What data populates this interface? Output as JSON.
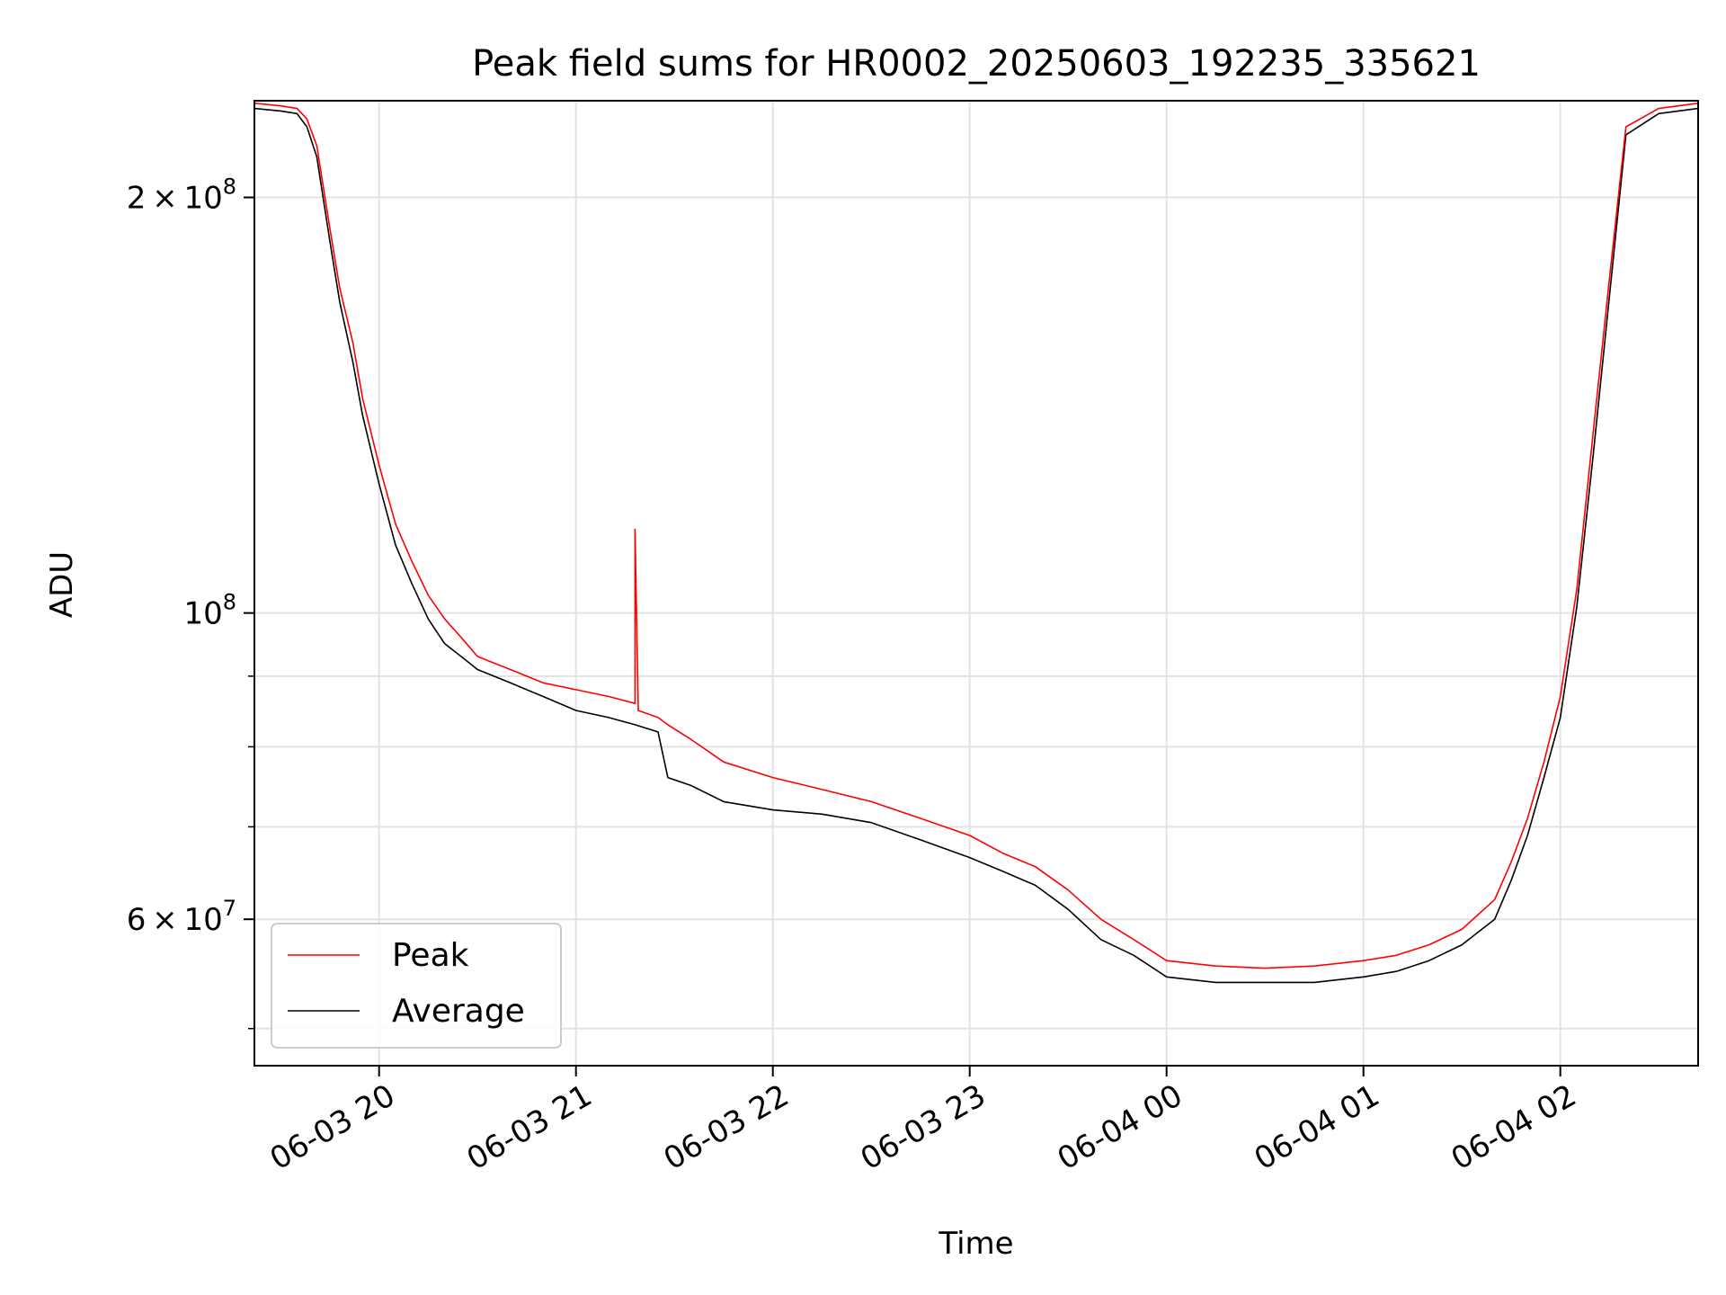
{
  "chart_data": {
    "type": "line",
    "title": "Peak field sums for HR0002_20250603_192235_335621",
    "xlabel": "Time",
    "ylabel": "ADU",
    "y_scale": "log",
    "grid": true,
    "legend_position": "lower-left",
    "xlim": [
      "2025-06-03 19:22",
      "2025-06-04 02:42"
    ],
    "ylim": [
      47000000,
      235000000
    ],
    "x_ticks": [
      {
        "value": "2025-06-03 20:00",
        "label": "06-03 20"
      },
      {
        "value": "2025-06-03 21:00",
        "label": "06-03 21"
      },
      {
        "value": "2025-06-03 22:00",
        "label": "06-03 22"
      },
      {
        "value": "2025-06-03 23:00",
        "label": "06-03 23"
      },
      {
        "value": "2025-06-04 00:00",
        "label": "06-04 00"
      },
      {
        "value": "2025-06-04 01:00",
        "label": "06-04 01"
      },
      {
        "value": "2025-06-04 02:00",
        "label": "06-04 02"
      }
    ],
    "y_ticks_major": [
      {
        "value": 200000000,
        "mantissa": "2",
        "exponent": "8"
      },
      {
        "value": 100000000,
        "mantissa": "",
        "exponent": "8"
      },
      {
        "value": 60000000,
        "mantissa": "6",
        "exponent": "7"
      }
    ],
    "y_ticks_minor": [
      50000000,
      70000000,
      80000000,
      90000000
    ],
    "series": [
      {
        "name": "Peak",
        "color": "#ff0000",
        "x": [
          "2025-06-03 19:22",
          "2025-06-03 19:30",
          "2025-06-03 19:35",
          "2025-06-03 19:38",
          "2025-06-03 19:41",
          "2025-06-03 19:45",
          "2025-06-03 19:48",
          "2025-06-03 19:52",
          "2025-06-03 19:55",
          "2025-06-03 20:00",
          "2025-06-03 20:05",
          "2025-06-03 20:10",
          "2025-06-03 20:15",
          "2025-06-03 20:20",
          "2025-06-03 20:25",
          "2025-06-03 20:30",
          "2025-06-03 20:40",
          "2025-06-03 20:50",
          "2025-06-03 21:00",
          "2025-06-03 21:10",
          "2025-06-03 21:18",
          "2025-06-03 21:18",
          "2025-06-03 21:19",
          "2025-06-03 21:25",
          "2025-06-03 21:28",
          "2025-06-03 21:35",
          "2025-06-03 21:45",
          "2025-06-03 22:00",
          "2025-06-03 22:15",
          "2025-06-03 22:30",
          "2025-06-03 22:45",
          "2025-06-03 23:00",
          "2025-06-03 23:10",
          "2025-06-03 23:20",
          "2025-06-03 23:30",
          "2025-06-03 23:40",
          "2025-06-03 23:50",
          "2025-06-04 00:00",
          "2025-06-04 00:15",
          "2025-06-04 00:30",
          "2025-06-04 00:45",
          "2025-06-04 01:00",
          "2025-06-04 01:10",
          "2025-06-04 01:20",
          "2025-06-04 01:30",
          "2025-06-04 01:40",
          "2025-06-04 01:45",
          "2025-06-04 01:50",
          "2025-06-04 01:55",
          "2025-06-04 02:00",
          "2025-06-04 02:05",
          "2025-06-04 02:10",
          "2025-06-04 02:15",
          "2025-06-04 02:20",
          "2025-06-04 02:30",
          "2025-06-04 02:42"
        ],
        "values": [
          234000000,
          233000000,
          232000000,
          228000000,
          218000000,
          190000000,
          172000000,
          157000000,
          143000000,
          128000000,
          116000000,
          109000000,
          103000000,
          99000000,
          96000000,
          93000000,
          91000000,
          89000000,
          88000000,
          87000000,
          86000000,
          115000000,
          85000000,
          84000000,
          83000000,
          81000000,
          78000000,
          76000000,
          74500000,
          73000000,
          71000000,
          69000000,
          67000000,
          65500000,
          63000000,
          60000000,
          58000000,
          56000000,
          55500000,
          55300000,
          55500000,
          56000000,
          56500000,
          57500000,
          59000000,
          62000000,
          66000000,
          71000000,
          78000000,
          87000000,
          104000000,
          135000000,
          175000000,
          225000000,
          232000000,
          234000000
        ]
      },
      {
        "name": "Average",
        "color": "#000000",
        "x": [
          "2025-06-03 19:22",
          "2025-06-03 19:30",
          "2025-06-03 19:35",
          "2025-06-03 19:38",
          "2025-06-03 19:41",
          "2025-06-03 19:45",
          "2025-06-03 19:48",
          "2025-06-03 19:52",
          "2025-06-03 19:55",
          "2025-06-03 20:00",
          "2025-06-03 20:05",
          "2025-06-03 20:10",
          "2025-06-03 20:15",
          "2025-06-03 20:20",
          "2025-06-03 20:25",
          "2025-06-03 20:30",
          "2025-06-03 20:40",
          "2025-06-03 20:50",
          "2025-06-03 21:00",
          "2025-06-03 21:10",
          "2025-06-03 21:18",
          "2025-06-03 21:25",
          "2025-06-03 21:28",
          "2025-06-03 21:35",
          "2025-06-03 21:45",
          "2025-06-03 22:00",
          "2025-06-03 22:15",
          "2025-06-03 22:30",
          "2025-06-03 22:45",
          "2025-06-03 23:00",
          "2025-06-03 23:10",
          "2025-06-03 23:20",
          "2025-06-03 23:30",
          "2025-06-03 23:40",
          "2025-06-03 23:50",
          "2025-06-04 00:00",
          "2025-06-04 00:15",
          "2025-06-04 00:30",
          "2025-06-04 00:45",
          "2025-06-04 01:00",
          "2025-06-04 01:10",
          "2025-06-04 01:20",
          "2025-06-04 01:30",
          "2025-06-04 01:40",
          "2025-06-04 01:45",
          "2025-06-04 01:50",
          "2025-06-04 01:55",
          "2025-06-04 02:00",
          "2025-06-04 02:05",
          "2025-06-04 02:10",
          "2025-06-04 02:15",
          "2025-06-04 02:20",
          "2025-06-04 02:30",
          "2025-06-04 02:42"
        ],
        "values": [
          232000000,
          231000000,
          230000000,
          225000000,
          214000000,
          186000000,
          168000000,
          152000000,
          139000000,
          124000000,
          112000000,
          105000000,
          99000000,
          95000000,
          93000000,
          91000000,
          89000000,
          87000000,
          85000000,
          84000000,
          83000000,
          82000000,
          76000000,
          75000000,
          73000000,
          72000000,
          71500000,
          70500000,
          68500000,
          66500000,
          65000000,
          63500000,
          61000000,
          58000000,
          56500000,
          54500000,
          54000000,
          54000000,
          54000000,
          54500000,
          55000000,
          56000000,
          57500000,
          60000000,
          64000000,
          69000000,
          76000000,
          84000000,
          101000000,
          130000000,
          170000000,
          222000000,
          230000000,
          232000000
        ]
      }
    ]
  }
}
